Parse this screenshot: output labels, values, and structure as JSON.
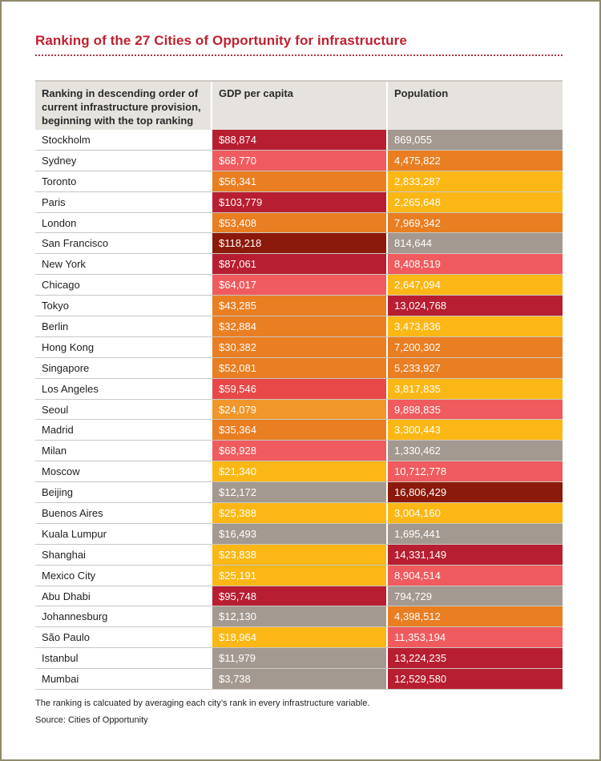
{
  "title": "Ranking of the 27 Cities of Opportunity for infrastructure",
  "headers": {
    "col1": "Ranking in descending order of current infrastructure provision, beginning with the top ranking",
    "col2": "GDP per capita",
    "col3": "Population"
  },
  "palette": {
    "dark_maroon": "#8b1a0c",
    "crimson": "#b81e31",
    "coral_red": "#e84848",
    "salmon": "#ef5b5e",
    "orange": "#e97e23",
    "light_orange": "#f0962a",
    "yellow": "#fbb715",
    "grey": "#a49990"
  },
  "rows": [
    {
      "city": "Stockholm",
      "gdp": "$88,874",
      "gdp_color": "#b81e31",
      "pop": "869,055",
      "pop_color": "#a49990"
    },
    {
      "city": "Sydney",
      "gdp": "$68,770",
      "gdp_color": "#ef5b5e",
      "pop": "4,475,822",
      "pop_color": "#e97e23"
    },
    {
      "city": "Toronto",
      "gdp": "$56,341",
      "gdp_color": "#e97e23",
      "pop": "2,833,287",
      "pop_color": "#fbb715"
    },
    {
      "city": "Paris",
      "gdp": "$103,779",
      "gdp_color": "#b81e31",
      "pop": "2,265,648",
      "pop_color": "#fbb715"
    },
    {
      "city": "London",
      "gdp": "$53,408",
      "gdp_color": "#e97e23",
      "pop": "7,969,342",
      "pop_color": "#e97e23"
    },
    {
      "city": "San Francisco",
      "gdp": "$118,218",
      "gdp_color": "#8b1a0c",
      "pop": "814,644",
      "pop_color": "#a49990"
    },
    {
      "city": "New York",
      "gdp": "$87,061",
      "gdp_color": "#b81e31",
      "pop": "8,408,519",
      "pop_color": "#ef5b5e"
    },
    {
      "city": "Chicago",
      "gdp": "$64,017",
      "gdp_color": "#ef5b5e",
      "pop": "2,647,094",
      "pop_color": "#fbb715"
    },
    {
      "city": "Tokyo",
      "gdp": "$43,285",
      "gdp_color": "#e97e23",
      "pop": "13,024,768",
      "pop_color": "#b81e31"
    },
    {
      "city": "Berlin",
      "gdp": "$32,884",
      "gdp_color": "#e97e23",
      "pop": "3,473,836",
      "pop_color": "#fbb715"
    },
    {
      "city": "Hong Kong",
      "gdp": "$30,382",
      "gdp_color": "#e97e23",
      "pop": "7,200,302",
      "pop_color": "#e97e23"
    },
    {
      "city": "Singapore",
      "gdp": "$52,081",
      "gdp_color": "#e97e23",
      "pop": "5,233,927",
      "pop_color": "#e97e23"
    },
    {
      "city": "Los Angeles",
      "gdp": "$59,546",
      "gdp_color": "#e84848",
      "pop": "3,817,835",
      "pop_color": "#fbb715"
    },
    {
      "city": "Seoul",
      "gdp": "$24,079",
      "gdp_color": "#f0962a",
      "pop": "9,898,835",
      "pop_color": "#ef5b5e"
    },
    {
      "city": "Madrid",
      "gdp": "$35,364",
      "gdp_color": "#e97e23",
      "pop": "3,300,443",
      "pop_color": "#fbb715"
    },
    {
      "city": "Milan",
      "gdp": "$68,928",
      "gdp_color": "#ef5b5e",
      "pop": "1,330,462",
      "pop_color": "#a49990"
    },
    {
      "city": "Moscow",
      "gdp": "$21,340",
      "gdp_color": "#fbb715",
      "pop": "10,712,778",
      "pop_color": "#ef5b5e"
    },
    {
      "city": "Beijing",
      "gdp": "$12,172",
      "gdp_color": "#a49990",
      "pop": "16,806,429",
      "pop_color": "#8b1a0c"
    },
    {
      "city": "Buenos Aires",
      "gdp": "$25,388",
      "gdp_color": "#fbb715",
      "pop": "3,004,160",
      "pop_color": "#fbb715"
    },
    {
      "city": "Kuala Lumpur",
      "gdp": "$16,493",
      "gdp_color": "#a49990",
      "pop": "1,695,441",
      "pop_color": "#a49990"
    },
    {
      "city": "Shanghai",
      "gdp": "$23,838",
      "gdp_color": "#fbb715",
      "pop": "14,331,149",
      "pop_color": "#b81e31"
    },
    {
      "city": "Mexico City",
      "gdp": "$25,191",
      "gdp_color": "#fbb715",
      "pop": "8,904,514",
      "pop_color": "#ef5b5e"
    },
    {
      "city": "Abu Dhabi",
      "gdp": "$95,748",
      "gdp_color": "#b81e31",
      "pop": "794,729",
      "pop_color": "#a49990"
    },
    {
      "city": "Johannesburg",
      "gdp": "$12,130",
      "gdp_color": "#a49990",
      "pop": "4,398,512",
      "pop_color": "#e97e23"
    },
    {
      "city": "São Paulo",
      "gdp": "$18,964",
      "gdp_color": "#fbb715",
      "pop": "11,353,194",
      "pop_color": "#ef5b5e"
    },
    {
      "city": "Istanbul",
      "gdp": "$11,979",
      "gdp_color": "#a49990",
      "pop": "13,224,235",
      "pop_color": "#b81e31"
    },
    {
      "city": "Mumbai",
      "gdp": "$3,738",
      "gdp_color": "#a49990",
      "pop": "12,529,580",
      "pop_color": "#b81e31"
    }
  ],
  "footnote": "The ranking is calcuated by averaging each city’s rank in every infrastructure variable.",
  "source": "Source: Cities of Opportunity"
}
